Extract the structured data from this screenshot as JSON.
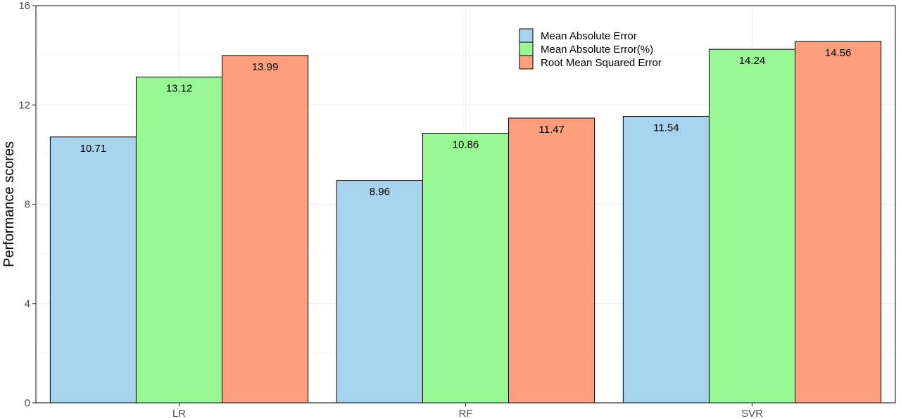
{
  "chart_data": {
    "type": "bar",
    "title": "",
    "xlabel": "",
    "ylabel": "Performance scores",
    "ylim": [
      0,
      16
    ],
    "yticks": [
      0,
      4,
      8,
      12,
      16
    ],
    "grid": true,
    "legend_position": "top-right",
    "categories": [
      "LR",
      "RF",
      "SVR"
    ],
    "series": [
      {
        "name": "Mean Absolute Error",
        "color": "#a6d4ee",
        "values": [
          10.71,
          8.96,
          11.54
        ]
      },
      {
        "name": "Mean Absolute Error(%)",
        "color": "#98f894",
        "values": [
          13.12,
          10.86,
          14.24
        ]
      },
      {
        "name": "Root Mean Squared Error",
        "color": "#fc9f7c",
        "values": [
          13.99,
          11.47,
          14.56
        ]
      }
    ]
  }
}
